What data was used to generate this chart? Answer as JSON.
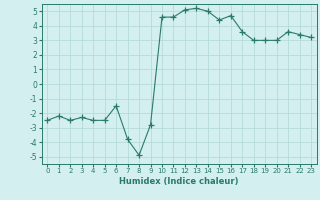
{
  "x": [
    0,
    1,
    2,
    3,
    4,
    5,
    6,
    7,
    8,
    9,
    10,
    11,
    12,
    13,
    14,
    15,
    16,
    17,
    18,
    19,
    20,
    21,
    22,
    23
  ],
  "y": [
    -2.5,
    -2.2,
    -2.5,
    -2.3,
    -2.5,
    -2.5,
    -1.5,
    -3.8,
    -4.9,
    -2.8,
    4.6,
    4.6,
    5.1,
    5.2,
    5.0,
    4.4,
    4.7,
    3.6,
    3.0,
    3.0,
    3.0,
    3.6,
    3.4,
    3.2
  ],
  "title": "",
  "xlabel": "Humidex (Indice chaleur)",
  "ylabel": "",
  "xlim": [
    -0.5,
    23.5
  ],
  "ylim": [
    -5.5,
    5.5
  ],
  "yticks": [
    -5,
    -4,
    -3,
    -2,
    -1,
    0,
    1,
    2,
    3,
    4,
    5
  ],
  "xticks": [
    0,
    1,
    2,
    3,
    4,
    5,
    6,
    7,
    8,
    9,
    10,
    11,
    12,
    13,
    14,
    15,
    16,
    17,
    18,
    19,
    20,
    21,
    22,
    23
  ],
  "line_color": "#2a7a6a",
  "marker": "+",
  "bg_color": "#d4efef",
  "grid_color": "#b0d8d8",
  "spine_color": "#2a7a6a",
  "tick_color": "#2a7a6a",
  "label_color": "#2a7a6a"
}
